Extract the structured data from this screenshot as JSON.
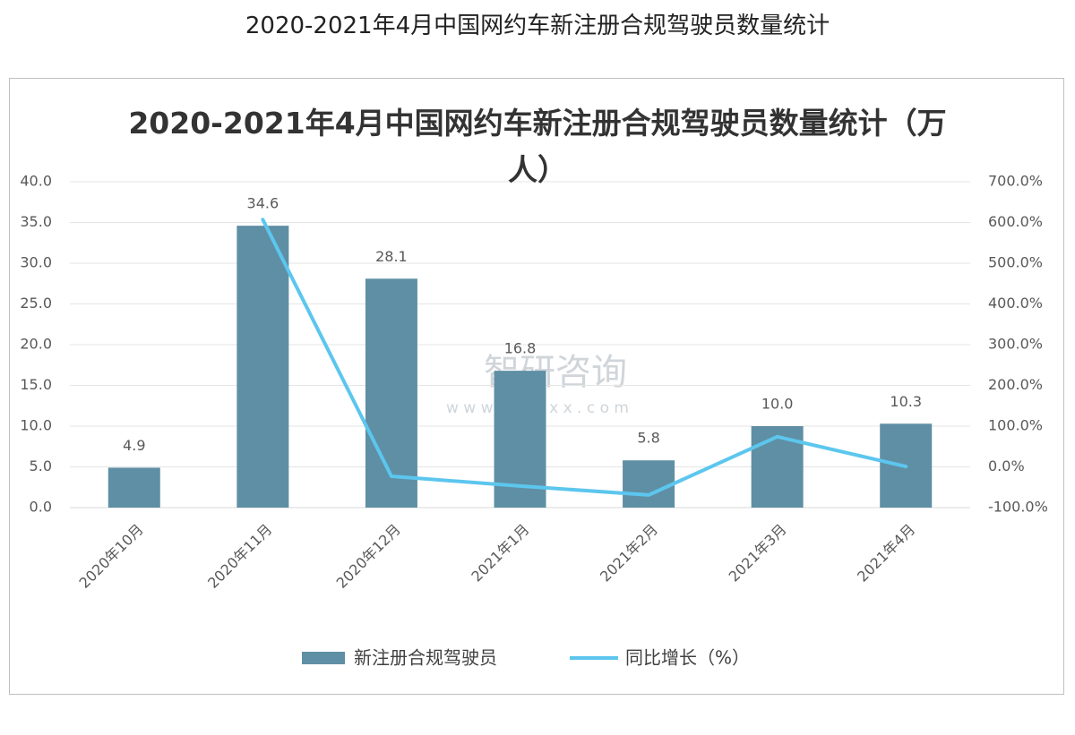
{
  "page_title": "2020-2021年4月中国网约车新注册合规驾驶员数量统计",
  "chart_data": {
    "type": "bar_line",
    "title": "2020-2021年4月中国网约车新注册合规驾驶员数量统计（万人）",
    "categories": [
      "2020年10月",
      "2020年11月",
      "2020年12月",
      "2021年1月",
      "2021年2月",
      "2021年3月",
      "2021年4月"
    ],
    "series": [
      {
        "name": "新注册合规驾驶员",
        "type": "bar",
        "color": "#5f8fa4",
        "values": [
          4.9,
          34.6,
          28.1,
          16.8,
          5.8,
          10.0,
          10.3
        ],
        "value_labels": [
          "4.9",
          "34.6",
          "28.1",
          "16.8",
          "5.8",
          "10.0",
          "10.3"
        ]
      },
      {
        "name": "同比增长（%）",
        "type": "line",
        "axis": "y2",
        "color": "#5cc6ee",
        "values": [
          null,
          607,
          -23,
          -47,
          -69,
          74,
          1
        ]
      }
    ],
    "ylim": [
      0,
      40
    ],
    "yticks": [
      {
        "value": 0,
        "label": "0.0"
      },
      {
        "value": 5,
        "label": "5.0"
      },
      {
        "value": 10,
        "label": "10.0"
      },
      {
        "value": 15,
        "label": "15.0"
      },
      {
        "value": 20,
        "label": "20.0"
      },
      {
        "value": 25,
        "label": "25.0"
      },
      {
        "value": 30,
        "label": "30.0"
      },
      {
        "value": 35,
        "label": "35.0"
      },
      {
        "value": 40,
        "label": "40.0"
      }
    ],
    "y2lim": [
      -100,
      700
    ],
    "y2ticks": [
      {
        "value": -100,
        "label": "-100.0%"
      },
      {
        "value": 0,
        "label": "0.0%"
      },
      {
        "value": 100,
        "label": "100.0%"
      },
      {
        "value": 200,
        "label": "200.0%"
      },
      {
        "value": 300,
        "label": "300.0%"
      },
      {
        "value": 400,
        "label": "400.0%"
      },
      {
        "value": 500,
        "label": "500.0%"
      },
      {
        "value": 600,
        "label": "600.0%"
      },
      {
        "value": 700,
        "label": "700.0%"
      }
    ],
    "watermark": [
      "智研咨询",
      "w w w . c h y x x . c o m"
    ]
  }
}
